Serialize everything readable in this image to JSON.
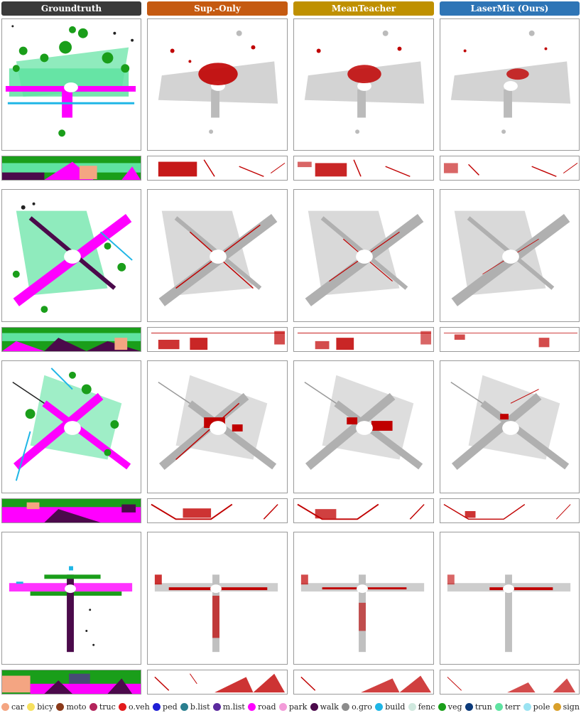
{
  "columns": [
    {
      "label": "Groundtruth",
      "color": "#3a3a3a"
    },
    {
      "label": "Sup.-Only",
      "color": "#c55a11"
    },
    {
      "label": "MeanTeacher",
      "color": "#bf9000"
    },
    {
      "label": "LaserMix (Ours)",
      "color": "#2e75b6"
    }
  ],
  "legend": [
    {
      "label": "car",
      "color": "#f4a582"
    },
    {
      "label": "bicy",
      "color": "#f6e05e"
    },
    {
      "label": "moto",
      "color": "#8b3a1a"
    },
    {
      "label": "truc",
      "color": "#b3245c"
    },
    {
      "label": "o.veh",
      "color": "#e31a1c"
    },
    {
      "label": "ped",
      "color": "#1f1fd6"
    },
    {
      "label": "b.list",
      "color": "#2a7f8f"
    },
    {
      "label": "m.list",
      "color": "#5b2a9e"
    },
    {
      "label": "road",
      "color": "#ff00ff"
    },
    {
      "label": "park",
      "color": "#f39bd9"
    },
    {
      "label": "walk",
      "color": "#4b0a4b"
    },
    {
      "label": "o.gro",
      "color": "#8c8c8c"
    },
    {
      "label": "build",
      "color": "#1eb6e6"
    },
    {
      "label": "fenc",
      "color": "#cfe8de"
    },
    {
      "label": "veg",
      "color": "#1a9e1a"
    },
    {
      "label": "trun",
      "color": "#0b3a7a"
    },
    {
      "label": "terr",
      "color": "#5fe3a1"
    },
    {
      "label": "pole",
      "color": "#9be3f2"
    },
    {
      "label": "sign",
      "color": "#d9a02b"
    }
  ]
}
